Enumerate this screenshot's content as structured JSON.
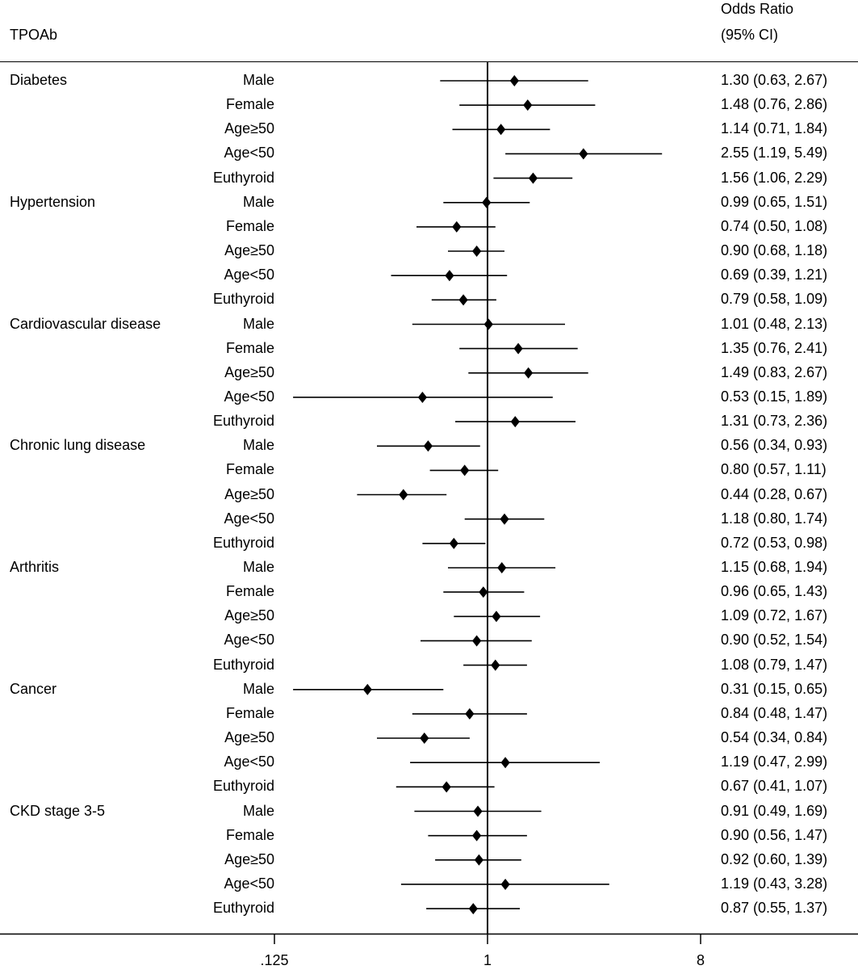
{
  "chart_data": {
    "type": "forest",
    "title": "TPOAb",
    "or_header": [
      "Odds Ratio",
      "(95% CI)"
    ],
    "x_scale": "log2",
    "x_ticks": [
      ".125",
      "1",
      "8"
    ],
    "x_tick_values": [
      0.125,
      1,
      8
    ],
    "reference_line": 1,
    "groups": [
      {
        "outcome": "Diabetes",
        "rows": [
          {
            "subgroup": "Male",
            "or": 1.3,
            "lo": 0.63,
            "hi": 2.67,
            "text": "1.30 (0.63, 2.67)"
          },
          {
            "subgroup": "Female",
            "or": 1.48,
            "lo": 0.76,
            "hi": 2.86,
            "text": "1.48 (0.76, 2.86)"
          },
          {
            "subgroup": "Age≥50",
            "or": 1.14,
            "lo": 0.71,
            "hi": 1.84,
            "text": "1.14 (0.71, 1.84)"
          },
          {
            "subgroup": "Age<50",
            "or": 2.55,
            "lo": 1.19,
            "hi": 5.49,
            "text": "2.55 (1.19, 5.49)"
          },
          {
            "subgroup": "Euthyroid",
            "or": 1.56,
            "lo": 1.06,
            "hi": 2.29,
            "text": "1.56 (1.06, 2.29)"
          }
        ]
      },
      {
        "outcome": "Hypertension",
        "rows": [
          {
            "subgroup": "Male",
            "or": 0.99,
            "lo": 0.65,
            "hi": 1.51,
            "text": "0.99 (0.65, 1.51)"
          },
          {
            "subgroup": "Female",
            "or": 0.74,
            "lo": 0.5,
            "hi": 1.08,
            "text": "0.74 (0.50, 1.08)"
          },
          {
            "subgroup": "Age≥50",
            "or": 0.9,
            "lo": 0.68,
            "hi": 1.18,
            "text": "0.90 (0.68, 1.18)"
          },
          {
            "subgroup": "Age<50",
            "or": 0.69,
            "lo": 0.39,
            "hi": 1.21,
            "text": "0.69 (0.39, 1.21)"
          },
          {
            "subgroup": "Euthyroid",
            "or": 0.79,
            "lo": 0.58,
            "hi": 1.09,
            "text": "0.79 (0.58, 1.09)"
          }
        ]
      },
      {
        "outcome": "Cardiovascular disease",
        "rows": [
          {
            "subgroup": "Male",
            "or": 1.01,
            "lo": 0.48,
            "hi": 2.13,
            "text": "1.01 (0.48, 2.13)"
          },
          {
            "subgroup": "Female",
            "or": 1.35,
            "lo": 0.76,
            "hi": 2.41,
            "text": "1.35 (0.76, 2.41)"
          },
          {
            "subgroup": "Age≥50",
            "or": 1.49,
            "lo": 0.83,
            "hi": 2.67,
            "text": "1.49 (0.83, 2.67)"
          },
          {
            "subgroup": "Age<50",
            "or": 0.53,
            "lo": 0.15,
            "hi": 1.89,
            "text": "0.53 (0.15, 1.89)"
          },
          {
            "subgroup": "Euthyroid",
            "or": 1.31,
            "lo": 0.73,
            "hi": 2.36,
            "text": "1.31 (0.73, 2.36)"
          }
        ]
      },
      {
        "outcome": "Chronic lung disease",
        "rows": [
          {
            "subgroup": "Male",
            "or": 0.56,
            "lo": 0.34,
            "hi": 0.93,
            "text": "0.56 (0.34, 0.93)"
          },
          {
            "subgroup": "Female",
            "or": 0.8,
            "lo": 0.57,
            "hi": 1.11,
            "text": "0.80 (0.57, 1.11)"
          },
          {
            "subgroup": "Age≥50",
            "or": 0.44,
            "lo": 0.28,
            "hi": 0.67,
            "text": "0.44 (0.28, 0.67)"
          },
          {
            "subgroup": "Age<50",
            "or": 1.18,
            "lo": 0.8,
            "hi": 1.74,
            "text": "1.18 (0.80, 1.74)"
          },
          {
            "subgroup": "Euthyroid",
            "or": 0.72,
            "lo": 0.53,
            "hi": 0.98,
            "text": "0.72 (0.53, 0.98)"
          }
        ]
      },
      {
        "outcome": "Arthritis",
        "rows": [
          {
            "subgroup": "Male",
            "or": 1.15,
            "lo": 0.68,
            "hi": 1.94,
            "text": "1.15 (0.68, 1.94)"
          },
          {
            "subgroup": "Female",
            "or": 0.96,
            "lo": 0.65,
            "hi": 1.43,
            "text": "0.96 (0.65, 1.43)"
          },
          {
            "subgroup": "Age≥50",
            "or": 1.09,
            "lo": 0.72,
            "hi": 1.67,
            "text": "1.09 (0.72, 1.67)"
          },
          {
            "subgroup": "Age<50",
            "or": 0.9,
            "lo": 0.52,
            "hi": 1.54,
            "text": "0.90 (0.52, 1.54)"
          },
          {
            "subgroup": "Euthyroid",
            "or": 1.08,
            "lo": 0.79,
            "hi": 1.47,
            "text": "1.08 (0.79, 1.47)"
          }
        ]
      },
      {
        "outcome": "Cancer",
        "rows": [
          {
            "subgroup": "Male",
            "or": 0.31,
            "lo": 0.15,
            "hi": 0.65,
            "text": "0.31 (0.15, 0.65)"
          },
          {
            "subgroup": "Female",
            "or": 0.84,
            "lo": 0.48,
            "hi": 1.47,
            "text": "0.84 (0.48, 1.47)"
          },
          {
            "subgroup": "Age≥50",
            "or": 0.54,
            "lo": 0.34,
            "hi": 0.84,
            "text": "0.54 (0.34, 0.84)"
          },
          {
            "subgroup": "Age<50",
            "or": 1.19,
            "lo": 0.47,
            "hi": 2.99,
            "text": "1.19 (0.47, 2.99)"
          },
          {
            "subgroup": "Euthyroid",
            "or": 0.67,
            "lo": 0.41,
            "hi": 1.07,
            "text": "0.67 (0.41, 1.07)"
          }
        ]
      },
      {
        "outcome": "CKD stage 3-5",
        "rows": [
          {
            "subgroup": "Male",
            "or": 0.91,
            "lo": 0.49,
            "hi": 1.69,
            "text": "0.91 (0.49, 1.69)"
          },
          {
            "subgroup": "Female",
            "or": 0.9,
            "lo": 0.56,
            "hi": 1.47,
            "text": "0.90 (0.56, 1.47)"
          },
          {
            "subgroup": "Age≥50",
            "or": 0.92,
            "lo": 0.6,
            "hi": 1.39,
            "text": "0.92 (0.60, 1.39)"
          },
          {
            "subgroup": "Age<50",
            "or": 1.19,
            "lo": 0.43,
            "hi": 3.28,
            "text": "1.19 (0.43, 3.28)"
          },
          {
            "subgroup": "Euthyroid",
            "or": 0.87,
            "lo": 0.55,
            "hi": 1.37,
            "text": "0.87 (0.55, 1.37)"
          }
        ]
      }
    ]
  }
}
